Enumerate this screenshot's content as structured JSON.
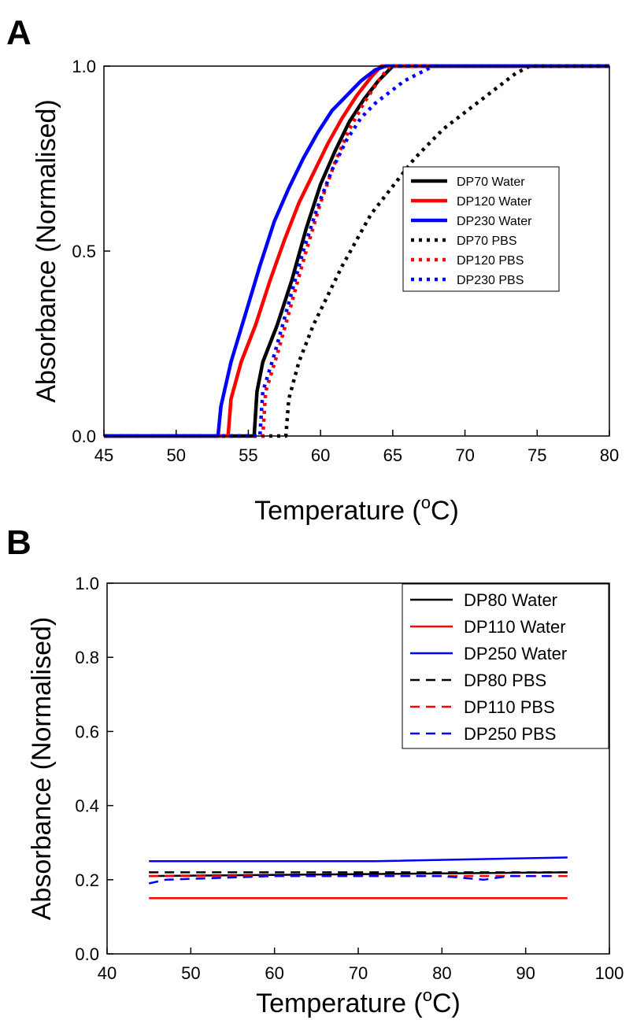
{
  "figure": {
    "panel_a_letter": "A",
    "panel_b_letter": "B"
  },
  "chart_data": [
    {
      "type": "line",
      "panel": "A",
      "xlabel_main": "Temperature (",
      "xlabel_sup": "o",
      "xlabel_end": "C)",
      "ylabel": "Absorbance (Normalised)",
      "xlim": [
        45,
        80
      ],
      "ylim": [
        0,
        1
      ],
      "xticks": [
        "45",
        "50",
        "55",
        "60",
        "65",
        "70",
        "75",
        "80"
      ],
      "yticks": [
        "0.0",
        "0.5",
        "1.0"
      ],
      "grid": false,
      "legend_position": "right-middle",
      "series": [
        {
          "name": "DP70 Water",
          "color": "#000000",
          "style": "solid",
          "x": [
            45,
            55.4,
            55.6,
            56,
            57,
            58,
            59,
            60,
            61,
            62,
            63,
            64,
            65,
            80
          ],
          "y": [
            0,
            0,
            0.12,
            0.2,
            0.3,
            0.42,
            0.56,
            0.68,
            0.77,
            0.85,
            0.91,
            0.96,
            1.0,
            1.0
          ]
        },
        {
          "name": "DP120 Water",
          "color": "#ff0000",
          "style": "solid",
          "x": [
            45,
            53.6,
            53.8,
            54.5,
            55.5,
            56.5,
            57.5,
            58.5,
            59.5,
            60.5,
            61.5,
            62.5,
            63.5,
            64.2,
            80
          ],
          "y": [
            0,
            0,
            0.1,
            0.2,
            0.3,
            0.42,
            0.53,
            0.63,
            0.71,
            0.79,
            0.86,
            0.92,
            0.97,
            1.0,
            1.0
          ]
        },
        {
          "name": "DP230 Water",
          "color": "#0000ff",
          "style": "solid",
          "x": [
            45,
            52.9,
            53.1,
            53.8,
            54.8,
            55.8,
            56.8,
            57.8,
            58.8,
            59.8,
            60.8,
            61.8,
            62.8,
            63.8,
            64.5,
            80
          ],
          "y": [
            0,
            0,
            0.08,
            0.2,
            0.33,
            0.46,
            0.58,
            0.67,
            0.75,
            0.82,
            0.88,
            0.92,
            0.96,
            0.99,
            1.0,
            1.0
          ]
        },
        {
          "name": "DP70 PBS",
          "color": "#000000",
          "style": "dotted",
          "x": [
            45,
            57.6,
            57.8,
            58.5,
            59.5,
            60.5,
            61.5,
            62.5,
            63.5,
            64.5,
            65.5,
            66.5,
            67.5,
            68.5,
            69.5,
            70.5,
            71.5,
            72.5,
            73.5,
            74.5,
            80
          ],
          "y": [
            0,
            0,
            0.1,
            0.2,
            0.3,
            0.38,
            0.46,
            0.53,
            0.6,
            0.65,
            0.7,
            0.75,
            0.79,
            0.83,
            0.86,
            0.89,
            0.92,
            0.95,
            0.98,
            1.0,
            1.0
          ]
        },
        {
          "name": "DP120 PBS",
          "color": "#ff0000",
          "style": "dotted",
          "x": [
            45,
            56,
            56.2,
            57,
            58,
            59,
            60,
            61,
            62,
            63,
            64,
            64.8,
            80
          ],
          "y": [
            0,
            0,
            0.12,
            0.22,
            0.36,
            0.5,
            0.63,
            0.74,
            0.83,
            0.9,
            0.96,
            1.0,
            1.0
          ]
        },
        {
          "name": "DP230 PBS",
          "color": "#0000ff",
          "style": "dotted",
          "x": [
            45,
            55.8,
            56,
            56.8,
            57.8,
            58.8,
            59.8,
            60.8,
            61.8,
            62.8,
            63.8,
            64.8,
            65.8,
            66.8,
            67.8,
            80
          ],
          "y": [
            0,
            0,
            0.12,
            0.22,
            0.36,
            0.5,
            0.62,
            0.72,
            0.8,
            0.86,
            0.9,
            0.93,
            0.96,
            0.98,
            1.0,
            1.0
          ]
        }
      ]
    },
    {
      "type": "line",
      "panel": "B",
      "xlabel_main": "Temperature (",
      "xlabel_sup": "o",
      "xlabel_end": "C)",
      "ylabel": "Absorbance (Normalised)",
      "xlim": [
        40,
        100
      ],
      "ylim": [
        0,
        1
      ],
      "xticks": [
        "40",
        "50",
        "60",
        "70",
        "80",
        "90",
        "100"
      ],
      "yticks": [
        "0.0",
        "0.2",
        "0.4",
        "0.6",
        "0.8",
        "1.0"
      ],
      "grid": false,
      "legend_position": "top-right",
      "series": [
        {
          "name": "DP80 Water",
          "color": "#000000",
          "style": "solid",
          "x": [
            45,
            95
          ],
          "y": [
            0.21,
            0.22
          ]
        },
        {
          "name": "DP110 Water",
          "color": "#ff0000",
          "style": "solid",
          "x": [
            45,
            95
          ],
          "y": [
            0.15,
            0.15
          ]
        },
        {
          "name": "DP250 Water",
          "color": "#0000ff",
          "style": "solid",
          "x": [
            45,
            72,
            95
          ],
          "y": [
            0.25,
            0.25,
            0.26
          ]
        },
        {
          "name": "DP80 PBS",
          "color": "#000000",
          "style": "dashed",
          "x": [
            45,
            95
          ],
          "y": [
            0.22,
            0.22
          ]
        },
        {
          "name": "DP110 PBS",
          "color": "#ff0000",
          "style": "dashed",
          "x": [
            45,
            95
          ],
          "y": [
            0.21,
            0.21
          ]
        },
        {
          "name": "DP250 PBS",
          "color": "#0000ff",
          "style": "dashed",
          "x": [
            45,
            47,
            60,
            80,
            85,
            88,
            93
          ],
          "y": [
            0.19,
            0.2,
            0.21,
            0.21,
            0.2,
            0.21,
            0.21
          ]
        }
      ]
    }
  ]
}
